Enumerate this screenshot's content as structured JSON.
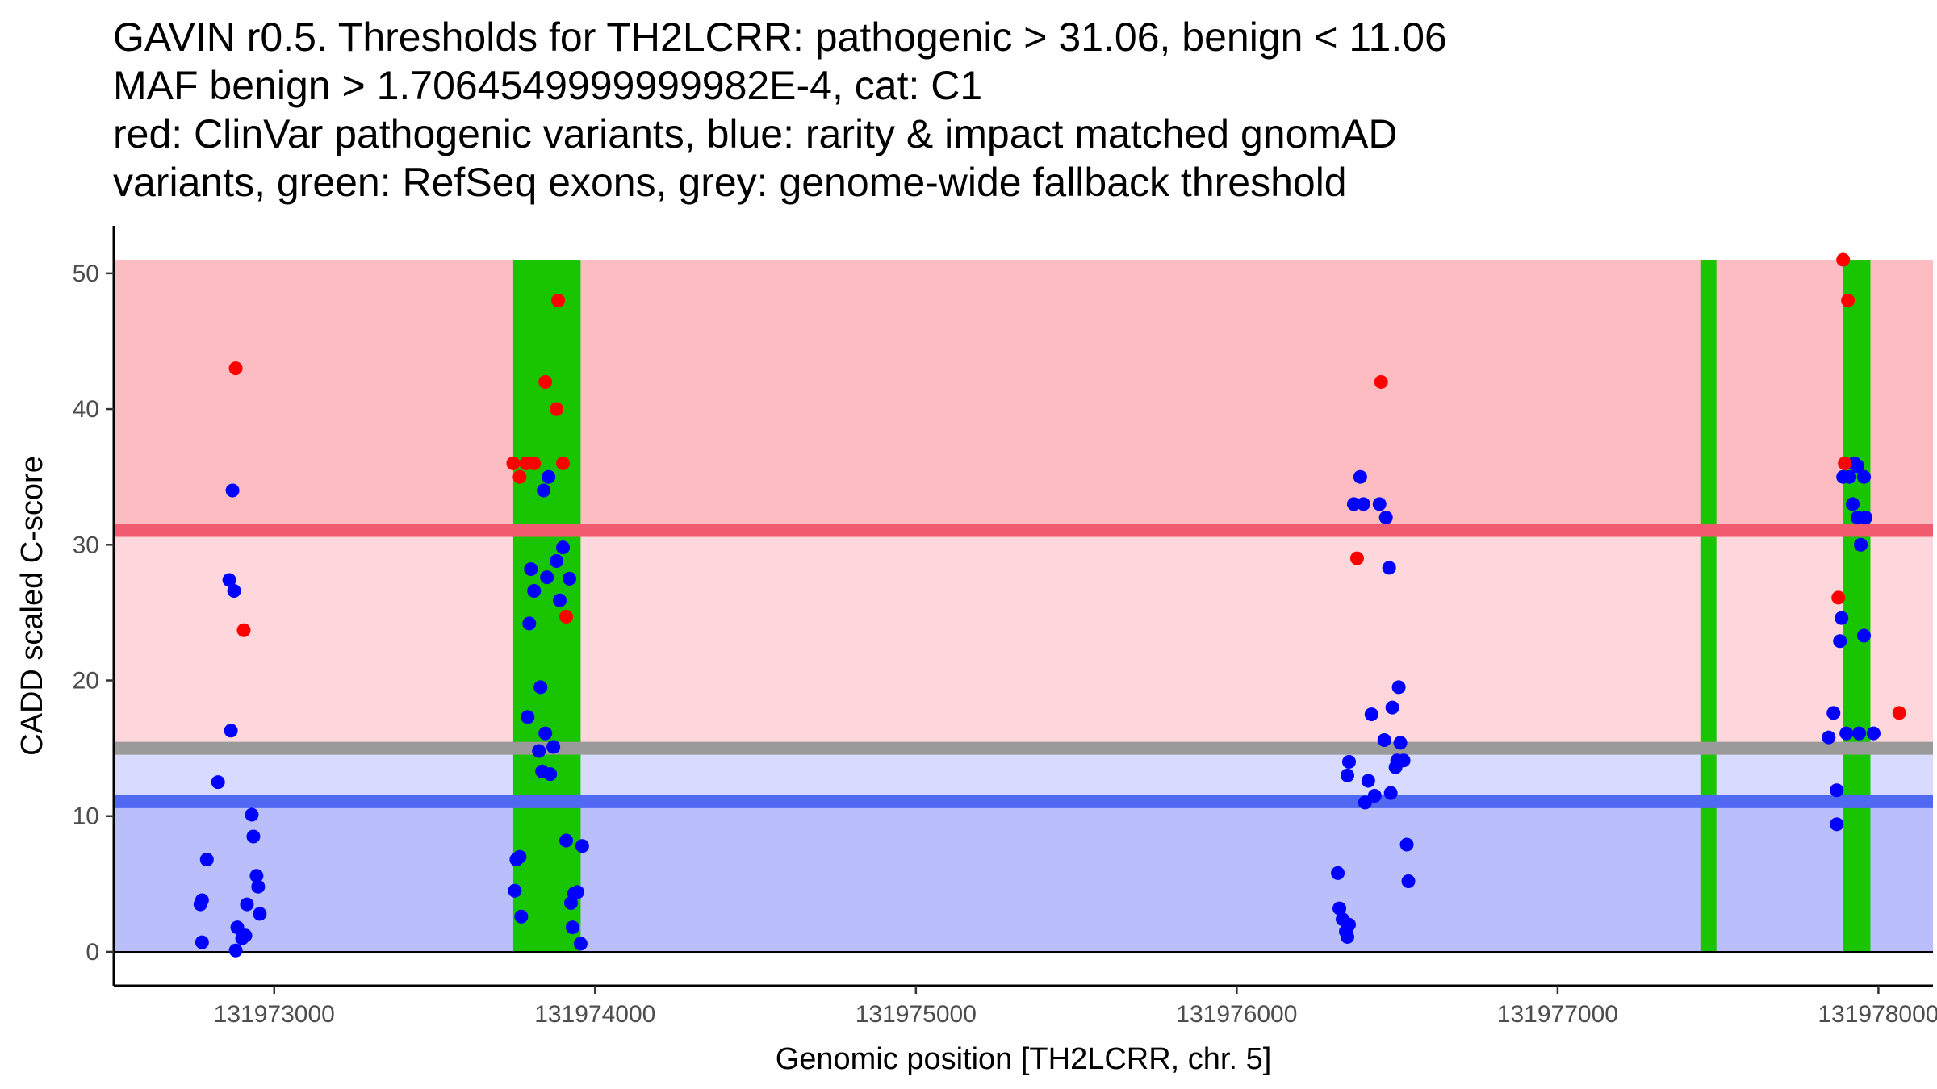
{
  "title_lines": [
    "GAVIN r0.5. Thresholds for TH2LCRR: pathogenic > 31.06, benign < 11.06",
    "MAF benign > 1.7064549999999982E-4, cat: C1",
    "red: ClinVar pathogenic variants, blue: rarity & impact matched gnomAD",
    "variants, green: RefSeq exons, grey: genome-wide fallback threshold"
  ],
  "colors": {
    "pathogenic_zone": "#fcbcc1",
    "upper_mid_zone": "#fdd7dc",
    "lower_mid_zone": "#d8daff",
    "benign_zone": "#babffb",
    "pathogenic_line": "#f15b6f",
    "benign_line": "#5068f2",
    "fallback_line": "#9a9a9a",
    "exon": "#19c400",
    "pathogenic_point": "#ff0000",
    "benign_point": "#0000ff"
  },
  "chart_data": {
    "type": "scatter",
    "xlabel": "Genomic position [TH2LCRR, chr. 5]",
    "ylabel": "CADD scaled C-score",
    "xlim": [
      131972500,
      131978170
    ],
    "ylim": [
      -2.5,
      53.5
    ],
    "x_ticks": [
      131973000,
      131974000,
      131975000,
      131976000,
      131977000,
      131978000
    ],
    "x_tick_labels": [
      "131973000",
      "131974000",
      "131975000",
      "131976000",
      "131977000",
      "131978000"
    ],
    "y_ticks": [
      0,
      10,
      20,
      30,
      40,
      50
    ],
    "y_tick_labels": [
      "0",
      "10",
      "20",
      "30",
      "40",
      "50"
    ],
    "zones": [
      {
        "name": "pathogenic",
        "from": 31.06,
        "to": 51
      },
      {
        "name": "upper-mid",
        "from": 15,
        "to": 31.06
      },
      {
        "name": "lower-mid",
        "from": 11.06,
        "to": 15
      },
      {
        "name": "benign",
        "from": 0,
        "to": 11.06
      }
    ],
    "thresholds": {
      "pathogenic": 31.06,
      "benign": 11.06,
      "fallback": 15
    },
    "exons": [
      {
        "start": 131973745,
        "end": 131973955
      },
      {
        "start": 131977445,
        "end": 131977495
      },
      {
        "start": 131977890,
        "end": 131977975
      }
    ],
    "series": [
      {
        "name": "ClinVar pathogenic",
        "color_key": "pathogenic_point",
        "points": [
          [
            131972880,
            43
          ],
          [
            131972905,
            23.7
          ],
          [
            131973745,
            36
          ],
          [
            131973765,
            35
          ],
          [
            131973785,
            36
          ],
          [
            131973810,
            36
          ],
          [
            131973845,
            42
          ],
          [
            131973880,
            40
          ],
          [
            131973885,
            48
          ],
          [
            131973900,
            36
          ],
          [
            131973910,
            24.7
          ],
          [
            131976375,
            29
          ],
          [
            131976450,
            42
          ],
          [
            131977875,
            26.1
          ],
          [
            131977890,
            51
          ],
          [
            131977895,
            36
          ],
          [
            131977905,
            48
          ],
          [
            131978065,
            17.6
          ]
        ]
      },
      {
        "name": "gnomAD matched",
        "color_key": "benign_point",
        "points": [
          [
            131972775,
            0.7
          ],
          [
            131972770,
            3.5
          ],
          [
            131972775,
            3.8
          ],
          [
            131972790,
            6.8
          ],
          [
            131972825,
            12.5
          ],
          [
            131972860,
            27.4
          ],
          [
            131972865,
            16.3
          ],
          [
            131972870,
            34
          ],
          [
            131972875,
            26.6
          ],
          [
            131972880,
            0.1
          ],
          [
            131972885,
            1.8
          ],
          [
            131972900,
            1
          ],
          [
            131972910,
            1.2
          ],
          [
            131972915,
            3.5
          ],
          [
            131972930,
            10.1
          ],
          [
            131972935,
            8.5
          ],
          [
            131972945,
            5.6
          ],
          [
            131972950,
            4.8
          ],
          [
            131972955,
            2.8
          ],
          [
            131973750,
            4.5
          ],
          [
            131973755,
            6.8
          ],
          [
            131973765,
            7
          ],
          [
            131973770,
            2.6
          ],
          [
            131973790,
            17.3
          ],
          [
            131973795,
            24.2
          ],
          [
            131973800,
            28.2
          ],
          [
            131973810,
            26.6
          ],
          [
            131973825,
            14.8
          ],
          [
            131973830,
            19.5
          ],
          [
            131973835,
            13.3
          ],
          [
            131973840,
            34
          ],
          [
            131973845,
            16.1
          ],
          [
            131973850,
            27.6
          ],
          [
            131973855,
            35
          ],
          [
            131973860,
            13.1
          ],
          [
            131973870,
            15.1
          ],
          [
            131973880,
            28.8
          ],
          [
            131973890,
            25.9
          ],
          [
            131973900,
            29.8
          ],
          [
            131973910,
            8.2
          ],
          [
            131973920,
            27.5
          ],
          [
            131973925,
            3.6
          ],
          [
            131973930,
            1.8
          ],
          [
            131973935,
            4.3
          ],
          [
            131973945,
            4.4
          ],
          [
            131973955,
            0.6
          ],
          [
            131973960,
            7.8
          ],
          [
            131976315,
            5.8
          ],
          [
            131976320,
            3.2
          ],
          [
            131976330,
            2.4
          ],
          [
            131976340,
            1.5
          ],
          [
            131976345,
            1.1
          ],
          [
            131976350,
            2
          ],
          [
            131976345,
            13
          ],
          [
            131976350,
            14
          ],
          [
            131976365,
            33
          ],
          [
            131976385,
            35
          ],
          [
            131976395,
            33
          ],
          [
            131976400,
            11
          ],
          [
            131976410,
            12.6
          ],
          [
            131976420,
            17.5
          ],
          [
            131976430,
            11.5
          ],
          [
            131976445,
            33
          ],
          [
            131976460,
            15.6
          ],
          [
            131976465,
            32
          ],
          [
            131976475,
            28.3
          ],
          [
            131976480,
            11.7
          ],
          [
            131976485,
            18
          ],
          [
            131976500,
            14.1
          ],
          [
            131976495,
            13.6
          ],
          [
            131976505,
            19.5
          ],
          [
            131976510,
            15.4
          ],
          [
            131976520,
            14.1
          ],
          [
            131976530,
            7.9
          ],
          [
            131976535,
            5.2
          ],
          [
            131977845,
            15.8
          ],
          [
            131977860,
            17.6
          ],
          [
            131977870,
            11.9
          ],
          [
            131977870,
            9.4
          ],
          [
            131977880,
            22.9
          ],
          [
            131977885,
            24.6
          ],
          [
            131977890,
            35
          ],
          [
            131977900,
            16.1
          ],
          [
            131977910,
            35
          ],
          [
            131977920,
            33
          ],
          [
            131977925,
            36
          ],
          [
            131977935,
            35.8
          ],
          [
            131977935,
            32
          ],
          [
            131977940,
            16.1
          ],
          [
            131977945,
            30
          ],
          [
            131977955,
            35
          ],
          [
            131977955,
            23.3
          ],
          [
            131977960,
            32
          ],
          [
            131977985,
            16.1
          ]
        ]
      }
    ]
  }
}
